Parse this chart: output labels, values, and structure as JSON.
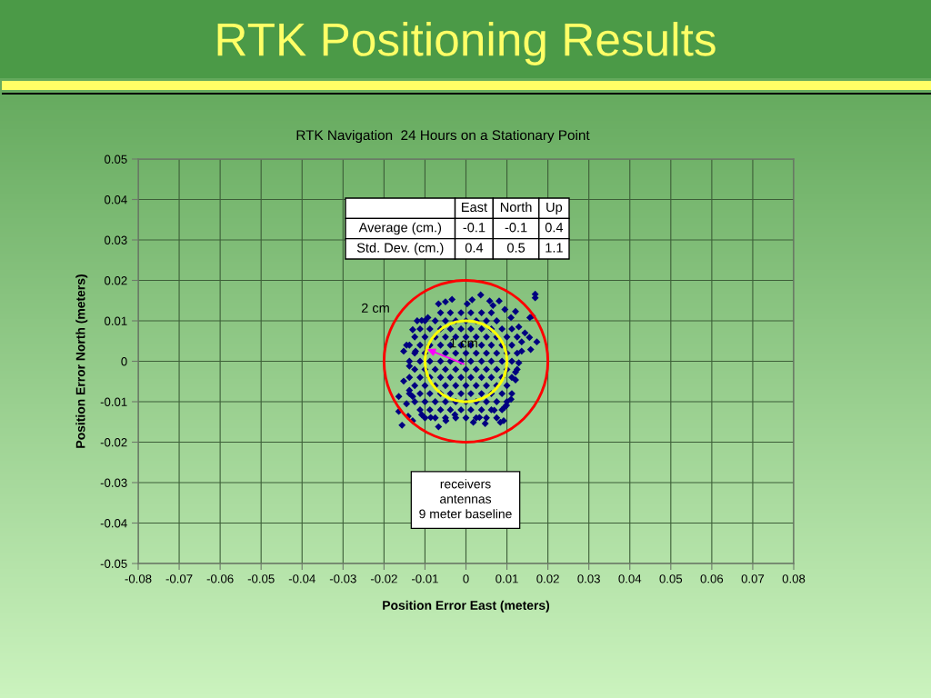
{
  "chart_data": [
    {
      "type": "scatter",
      "title": "RTK Positioning Results",
      "subtitle": "RTK Navigation  24 Hours on a Stationary Point",
      "xlabel": "Position Error East (meters)",
      "ylabel": "Position Error North (meters)",
      "xlim": [
        -0.08,
        0.08
      ],
      "xticks": [
        -0.08,
        -0.07,
        -0.06,
        -0.05,
        -0.04,
        -0.03,
        -0.02,
        -0.01,
        0,
        0.01,
        0.02,
        0.03,
        0.04,
        0.05,
        0.06,
        0.07,
        0.08
      ],
      "ylim": [
        -0.05,
        0.05
      ],
      "yticks": [
        -0.05,
        -0.04,
        -0.03,
        -0.02,
        -0.01,
        0,
        0.01,
        0.02,
        0.03,
        0.04,
        0.05
      ],
      "grid": true,
      "annotations": [
        "2 cm",
        {
          "text": "1 cm",
          "x": -0.0095,
          "y": 0.003
        },
        "receivers\nantennas\n9 meter baseline"
      ],
      "series": [
        {
          "type": "scatter",
          "color": "#000080",
          "marker": "diamond",
          "x": [
            0.0169,
            0.0169,
            0.0162,
            0.0156,
            0.0173,
            0.0158,
            0.0136,
            0.0121,
            0.011,
            0.0095,
            0.0092,
            0.0047,
            0.0018,
            -0.0067,
            -0.0156,
            -0.0164,
            -0.0141,
            -0.013,
            -0.0164,
            -0.013,
            -0.0152,
            -0.0145,
            -0.013,
            -0.0119,
            -0.0108,
            -0.0093,
            -0.0067,
            -0.0034,
            0.0003,
            0.0036,
            0.0058,
            0.0081,
            0.0121,
            0.011,
            0.0144,
            0.0155,
            0.0129,
            0.0121,
            0.0099,
            -0.0152,
            -0.0138,
            -0.0123,
            -0.0027,
            0.0033,
            -0.0108,
            -0.0086,
            0.0069,
            -0.005,
            0.0015,
            0.0066,
            0.0095,
            0.0129,
            0.0136,
            -0.0049,
            0.0084,
            -0.0138,
            -0.0145,
            -0.0062,
            -0.0038,
            -0.0012,
            0.0012,
            0.0038,
            0.0062,
            -0.01,
            -0.0075,
            -0.005,
            -0.0025,
            0,
            0.0025,
            0.005,
            0.0075,
            -0.0112,
            -0.0088,
            -0.0062,
            -0.0038,
            -0.0012,
            0.0012,
            0.0038,
            0.0062,
            0.0088,
            0.0112,
            -0.0125,
            -0.01,
            -0.0075,
            -0.005,
            -0.0025,
            0,
            0.0025,
            0.005,
            0.0075,
            0.01,
            0.0125,
            -0.0138,
            -0.0112,
            -0.0088,
            -0.0062,
            -0.0038,
            -0.0012,
            0.0012,
            0.0038,
            0.0062,
            0.0088,
            0.0112,
            -0.0125,
            -0.01,
            -0.005,
            -0.0025,
            0,
            0.0025,
            0.005,
            0.0075,
            0.01,
            0.0125,
            -0.0138,
            -0.0112,
            -0.0088,
            -0.0062,
            -0.0038,
            -0.0012,
            0.0012,
            0.0038,
            0.0062,
            0.0088,
            0.0112,
            -0.0125,
            -0.01,
            -0.0075,
            -0.005,
            -0.0025,
            0,
            0.0025,
            0.005,
            0.0075,
            0.01,
            0.0125,
            -0.0138,
            -0.0112,
            -0.0088,
            -0.0062,
            -0.0038,
            -0.0012,
            0.0012,
            0.0038,
            0.0062,
            0.0088,
            0.0112,
            -0.0125,
            -0.01,
            -0.0075,
            -0.005,
            -0.0025,
            0,
            0.0025,
            0.005,
            0.0075,
            0.01,
            -0.0138,
            -0.0112,
            -0.0088,
            -0.0062,
            -0.0038,
            -0.0012,
            0.0012,
            0.0038,
            0.0062,
            0.0088,
            0.0112,
            -0.0125,
            -0.01,
            -0.0075,
            -0.005,
            -0.0025,
            0,
            0.0025,
            0.005,
            0.0075,
            0.01,
            -0.0112,
            -0.0088,
            -0.0062,
            -0.0038,
            -0.0012,
            0.0012,
            0.0038,
            0.0062,
            0.0088,
            -0.01,
            -0.0075,
            -0.005,
            -0.0025,
            0,
            0.0025,
            0.005,
            0.0075
          ],
          "values": [
            0.0166,
            0.0157,
            0.0112,
            0.0108,
            0.0048,
            0.0029,
            0.0025,
            -0.0046,
            -0.0094,
            -0.0113,
            -0.0147,
            -0.0154,
            -0.0151,
            -0.0162,
            -0.0158,
            -0.0124,
            -0.0136,
            -0.0147,
            -0.0087,
            -0.0087,
            0.0025,
            0.004,
            0.0078,
            0.01,
            0.0101,
            0.0108,
            0.0142,
            0.0153,
            0.0142,
            0.0164,
            0.0149,
            0.0149,
            0.0123,
            0.0108,
            0.007,
            0.0059,
            -0.0004,
            -0.0027,
            -0.0109,
            -0.0049,
            -0.0012,
            0.0025,
            -0.0132,
            -0.0139,
            -0.0132,
            -0.0139,
            -0.0121,
            0.0147,
            0.0152,
            0.0138,
            0.0128,
            0.0085,
            0.0048,
            -0.0147,
            -0.0151,
            -0.0072,
            -0.0105,
            0.012,
            0.012,
            0.012,
            0.012,
            0.012,
            0.012,
            0.01,
            0.01,
            0.01,
            0.01,
            0.01,
            0.01,
            0.01,
            0.01,
            0.008,
            0.008,
            0.008,
            0.008,
            0.008,
            0.008,
            0.008,
            0.008,
            0.008,
            0.008,
            0.006,
            0.006,
            0.006,
            0.006,
            0.006,
            0.006,
            0.006,
            0.006,
            0.006,
            0.006,
            0.006,
            0.004,
            0.004,
            0.004,
            0.004,
            0.004,
            0.004,
            0.004,
            0.004,
            0.004,
            0.004,
            0.004,
            0.002,
            0.002,
            0.002,
            0.002,
            0.002,
            0.002,
            0.002,
            0.002,
            0.002,
            0.002,
            0,
            0,
            0,
            0,
            0,
            0,
            0,
            0,
            0,
            0,
            0,
            -0.002,
            -0.002,
            -0.002,
            -0.002,
            -0.002,
            -0.002,
            -0.002,
            -0.002,
            -0.002,
            -0.002,
            -0.002,
            -0.004,
            -0.004,
            -0.004,
            -0.004,
            -0.004,
            -0.004,
            -0.004,
            -0.004,
            -0.004,
            -0.004,
            -0.004,
            -0.006,
            -0.006,
            -0.006,
            -0.006,
            -0.006,
            -0.006,
            -0.006,
            -0.006,
            -0.006,
            -0.006,
            -0.008,
            -0.008,
            -0.008,
            -0.008,
            -0.008,
            -0.008,
            -0.008,
            -0.008,
            -0.008,
            -0.008,
            -0.008,
            -0.01,
            -0.01,
            -0.01,
            -0.01,
            -0.01,
            -0.01,
            -0.01,
            -0.01,
            -0.01,
            -0.01,
            -0.012,
            -0.012,
            -0.012,
            -0.012,
            -0.012,
            -0.012,
            -0.012,
            -0.012,
            -0.012,
            -0.014,
            -0.014,
            -0.014,
            -0.014,
            -0.014,
            -0.014,
            -0.014,
            -0.014
          ]
        }
      ]
    },
    {
      "type": "other",
      "categories": [
        "East",
        "North",
        "Up"
      ],
      "y_categories": [
        "Average (cm.)",
        "Std. Dev. (cm.)"
      ],
      "cell_labels": [
        [
          "-0.1",
          "-0.1",
          "0.4"
        ],
        [
          "0.4",
          "0.5",
          "1.1"
        ]
      ]
    }
  ]
}
